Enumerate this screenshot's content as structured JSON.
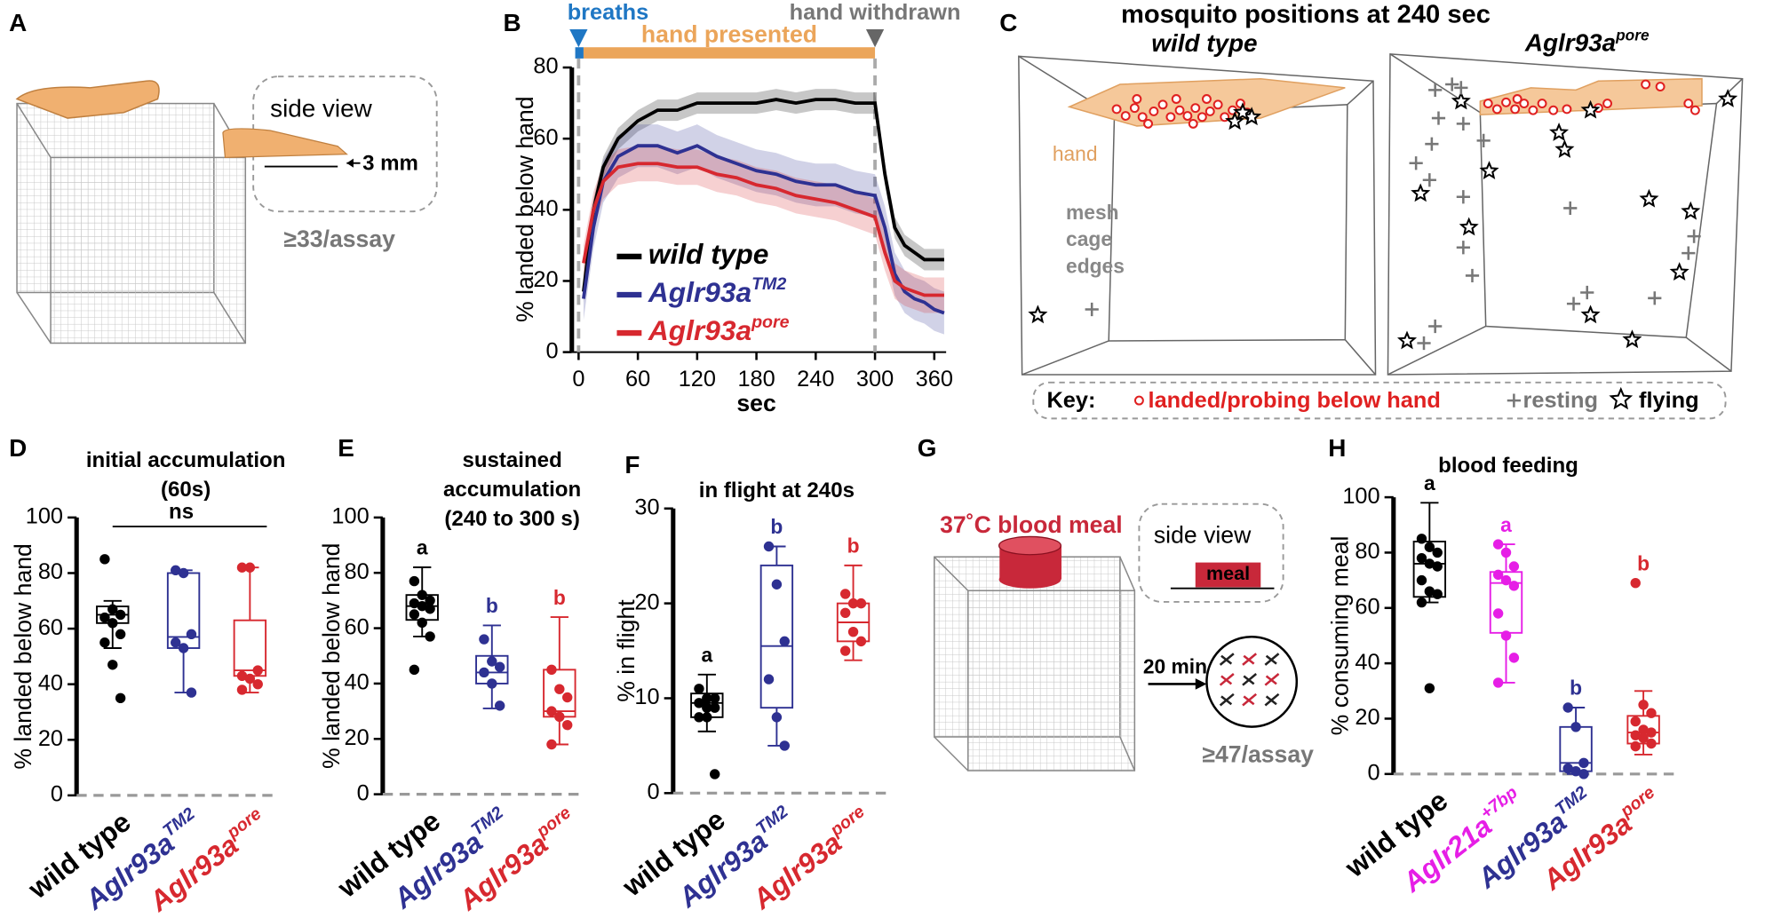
{
  "figure": {
    "panel_letters": [
      "A",
      "B",
      "C",
      "D",
      "E",
      "F",
      "G",
      "H"
    ]
  },
  "panel_a": {
    "side_view": "side view",
    "gap": "3 mm",
    "count": "≥33/assay"
  },
  "panel_c": {
    "title": "mosquito positions at 240 sec",
    "left_title": "wild type",
    "right_title": "Aglr93a",
    "right_title_sup": "pore",
    "hand": "hand",
    "mesh_label": [
      "mesh",
      "cage",
      "edges"
    ],
    "key": {
      "label": "Key:",
      "landed": "landed/probing below hand",
      "resting": "resting",
      "flying": "flying"
    }
  },
  "panel_g": {
    "title": "37˚C blood meal",
    "side_view": "side view",
    "meal": "meal",
    "time": "20 min",
    "count": "≥47/assay"
  },
  "chart_data": [
    {
      "type": "line",
      "ylabel": "% landed below hand",
      "xlabel": "sec",
      "annotations": {
        "breaths": "breaths",
        "hand_presented": "hand presented",
        "hand_withdrawn": "hand withdrawn"
      },
      "breaths_interval": [
        0,
        5
      ],
      "hand_interval": [
        5,
        300
      ],
      "xlim": [
        -7,
        372
      ],
      "ylim": [
        0,
        80
      ],
      "xticks": [
        0,
        60,
        120,
        180,
        240,
        300,
        360
      ],
      "yticks": [
        0,
        20,
        40,
        60,
        80
      ],
      "x": [
        5,
        15,
        25,
        40,
        60,
        80,
        100,
        120,
        140,
        160,
        180,
        200,
        220,
        240,
        260,
        280,
        300,
        310,
        320,
        330,
        340,
        350,
        360,
        370
      ],
      "series": [
        {
          "name": "wild type",
          "color": "#000000",
          "sem": 3,
          "values": [
            17,
            40,
            52,
            60,
            65,
            68,
            68,
            70,
            70,
            70,
            70,
            71,
            70,
            71,
            71,
            70,
            70,
            50,
            35,
            30,
            28,
            26,
            26,
            26
          ]
        },
        {
          "name": "Aglr93a",
          "superscript": "TM2",
          "color": "#2e3192",
          "sem": 6,
          "values": [
            15,
            35,
            48,
            55,
            58,
            58,
            56,
            58,
            55,
            53,
            51,
            50,
            48,
            47,
            47,
            45,
            44,
            35,
            22,
            17,
            15,
            14,
            12,
            11
          ]
        },
        {
          "name": "Aglr93a",
          "superscript": "pore",
          "color": "#d7282f",
          "sem": 5,
          "values": [
            25,
            40,
            48,
            52,
            53,
            53,
            52,
            52,
            50,
            49,
            47,
            46,
            44,
            43,
            42,
            40,
            38,
            28,
            20,
            18,
            17,
            16,
            16,
            16
          ]
        }
      ]
    },
    {
      "type": "box",
      "title": [
        "initial accumulation",
        "(60s)"
      ],
      "ylabel": "% landed below hand",
      "annotation": "ns",
      "ylim": [
        0,
        100
      ],
      "yticks": [
        0,
        20,
        40,
        60,
        80,
        100
      ],
      "series": [
        {
          "name": "wild type",
          "color": "#000000",
          "points": [
            85,
            67,
            65,
            64,
            62,
            58,
            55,
            47,
            35
          ],
          "box": [
            53,
            62,
            65,
            68,
            70
          ]
        },
        {
          "name": "Aglr93a",
          "superscript": "TM2",
          "color": "#2e3192",
          "points": [
            81,
            80,
            58,
            55,
            53,
            37
          ],
          "box": [
            37,
            53,
            57,
            80,
            81
          ]
        },
        {
          "name": "Aglr93a",
          "superscript": "pore",
          "color": "#d7282f",
          "points": [
            82,
            82,
            45,
            43,
            42,
            40,
            38
          ],
          "box": [
            37,
            43,
            45,
            63,
            82
          ]
        }
      ]
    },
    {
      "type": "box",
      "title": [
        "sustained",
        "accumulation",
        "(240 to 300 s)"
      ],
      "ylabel": "% landed below hand",
      "ylim": [
        0,
        100
      ],
      "yticks": [
        0,
        20,
        40,
        60,
        80,
        100
      ],
      "series": [
        {
          "name": "wild type",
          "color": "#000000",
          "letter": "a",
          "points": [
            77,
            72,
            70,
            69,
            68,
            67,
            65,
            62,
            57,
            45
          ],
          "box": [
            57,
            63,
            68,
            72,
            82
          ]
        },
        {
          "name": "Aglr93a",
          "superscript": "TM2",
          "color": "#2e3192",
          "letter": "b",
          "points": [
            56,
            48,
            46,
            44,
            40,
            32
          ],
          "box": [
            31,
            40,
            44,
            50,
            61
          ]
        },
        {
          "name": "Aglr93a",
          "superscript": "pore",
          "color": "#d7282f",
          "letter": "b",
          "points": [
            45,
            38,
            35,
            30,
            28,
            25,
            18
          ],
          "box": [
            18,
            28,
            30,
            45,
            64
          ]
        }
      ]
    },
    {
      "type": "box",
      "title": [
        "in flight at 240s"
      ],
      "ylabel": "% in flight",
      "ylim": [
        0,
        30
      ],
      "yticks": [
        0,
        10,
        20,
        30
      ],
      "series": [
        {
          "name": "wild type",
          "color": "#000000",
          "letter": "a",
          "points": [
            11,
            10,
            10,
            9.5,
            9,
            9,
            8,
            8,
            2
          ],
          "box": [
            6.5,
            8,
            9.5,
            10.5,
            12.5
          ]
        },
        {
          "name": "Aglr93a",
          "superscript": "TM2",
          "color": "#2e3192",
          "letter": "b",
          "points": [
            26,
            22,
            16,
            12,
            8,
            5
          ],
          "box": [
            5,
            9,
            15.5,
            24,
            26
          ]
        },
        {
          "name": "Aglr93a",
          "superscript": "pore",
          "color": "#d7282f",
          "letter": "b",
          "points": [
            21,
            20,
            20,
            19,
            17,
            16,
            15
          ],
          "box": [
            14,
            16,
            18,
            20,
            24
          ]
        }
      ]
    },
    {
      "type": "box",
      "title": [
        "blood feeding"
      ],
      "ylabel": "% consuming meal",
      "ylim": [
        0,
        100
      ],
      "yticks": [
        0,
        20,
        40,
        60,
        80,
        100
      ],
      "series": [
        {
          "name": "wild type",
          "color": "#000000",
          "letter": "a",
          "points": [
            85,
            82,
            80,
            78,
            76,
            75,
            70,
            66,
            65,
            62,
            31
          ],
          "box": [
            62,
            64,
            76,
            84,
            98
          ]
        },
        {
          "name": "Aglr21a",
          "superscript": "+7bp",
          "color": "#e61ee6",
          "letter": "a",
          "points": [
            83,
            80,
            75,
            72,
            70,
            68,
            58,
            50,
            42,
            33
          ],
          "box": [
            33,
            51,
            69,
            73,
            83
          ]
        },
        {
          "name": "Aglr93a",
          "superscript": "TM2",
          "color": "#2e3192",
          "letter": "b",
          "points": [
            24,
            17,
            4,
            2,
            1,
            0
          ],
          "box": [
            0,
            1,
            4,
            17,
            24
          ]
        },
        {
          "name": "Aglr93a",
          "superscript": "pore",
          "color": "#d7282f",
          "letter": "b",
          "points": [
            69,
            25,
            22,
            19,
            16,
            15,
            14,
            13,
            11,
            10
          ],
          "box": [
            7,
            11,
            15,
            21,
            30
          ]
        }
      ]
    }
  ]
}
